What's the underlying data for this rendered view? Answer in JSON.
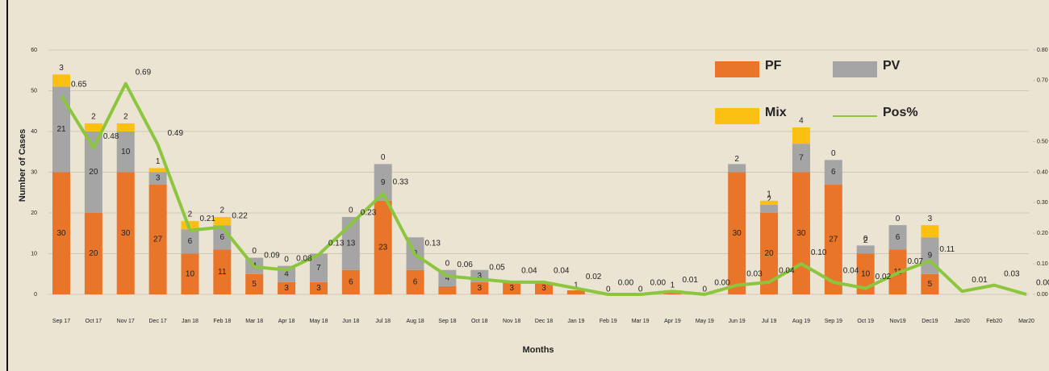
{
  "chart_data": {
    "type": "bar",
    "stacked": true,
    "xlabel": "Months",
    "ylabel": "Number of Cases",
    "categories": [
      "Sep 17",
      "Oct 17",
      "Nov 17",
      "Dec 17",
      "Jan 18",
      "Feb 18",
      "Mar 18",
      "Apr 18",
      "May 18",
      "Jun 18",
      "Jul 18",
      "Aug 18",
      "Sep 18",
      "Oct 18",
      "Nov 18",
      "Dec 18",
      "Jan 19",
      "Feb 19",
      "Mar 19",
      "Apr 19",
      "May 19",
      "Jun 19",
      "Jul 19",
      "Aug 19",
      "Sep 19",
      "Oct 19",
      "Nov19",
      "Dec19",
      "Jan20",
      "Feb20",
      "Mar20"
    ],
    "series": [
      {
        "name": "PF",
        "color": "#e8752a",
        "values": [
          30,
          20,
          30,
          27,
          10,
          11,
          5,
          3,
          3,
          6,
          23,
          6,
          2,
          3,
          3,
          3,
          1,
          0,
          0,
          1,
          0,
          30,
          20,
          30,
          27,
          10,
          11,
          5,
          null,
          null,
          null
        ]
      },
      {
        "name": "PV",
        "color": "#a5a5a5",
        "values": [
          21,
          20,
          10,
          3,
          6,
          6,
          4,
          4,
          7,
          13,
          9,
          8,
          4,
          3,
          null,
          null,
          null,
          null,
          null,
          null,
          null,
          2,
          2,
          7,
          6,
          2,
          6,
          9,
          null,
          null,
          null
        ]
      },
      {
        "name": "Mix",
        "color": "#fcc012",
        "values": [
          3,
          2,
          2,
          1,
          2,
          2,
          0,
          0,
          null,
          0,
          0,
          null,
          0,
          null,
          null,
          null,
          null,
          null,
          null,
          null,
          null,
          null,
          1,
          4,
          0,
          0,
          0,
          3,
          null,
          null,
          null
        ]
      },
      {
        "name": "Pos%",
        "color": "#8cc63f",
        "type": "line",
        "axis": "y2",
        "values": [
          0.65,
          0.48,
          0.69,
          0.49,
          0.21,
          0.22,
          0.09,
          0.08,
          0.13,
          0.23,
          0.33,
          0.13,
          0.06,
          0.05,
          0.04,
          0.04,
          0.02,
          0,
          0,
          0.01,
          0,
          0.03,
          0.04,
          0.1,
          0.04,
          0.02,
          0.07,
          0.11,
          0.01,
          0.03,
          0
        ],
        "value_labels": [
          "0.65",
          "0.48",
          "0.69",
          "0.49",
          "0.21",
          "0.22",
          "0.09",
          "0.08",
          "0.13",
          "0.23",
          "0.33",
          "0.13",
          "0.06",
          "0.05",
          "0.04",
          "0.04",
          "0.02",
          "0.00",
          "0.00",
          "0.01",
          "0.00",
          "0.03",
          "0.04",
          "0.10",
          "0.04",
          "0.02",
          "0.07",
          "0.11",
          "0.01",
          "0.03",
          "0.00"
        ]
      }
    ],
    "ylim": [
      0,
      60
    ],
    "yticks": [
      0,
      10,
      20,
      30,
      40,
      50,
      60
    ],
    "y2lim": [
      0,
      0.8
    ],
    "y2ticks": [
      {
        "value": 0,
        "label": "0.00"
      },
      {
        "value": 0.1,
        "label": "0.10"
      },
      {
        "value": 0.2,
        "label": "0.20"
      },
      {
        "value": 0.3,
        "label": "0.30"
      },
      {
        "value": 0.4,
        "label": "0.40"
      },
      {
        "value": 0.5,
        "label": "0.50"
      },
      {
        "value": 0.7,
        "label": "0.70"
      },
      {
        "value": 0.8,
        "label": "0.80"
      }
    ],
    "grid": true,
    "legend": "upper right"
  }
}
